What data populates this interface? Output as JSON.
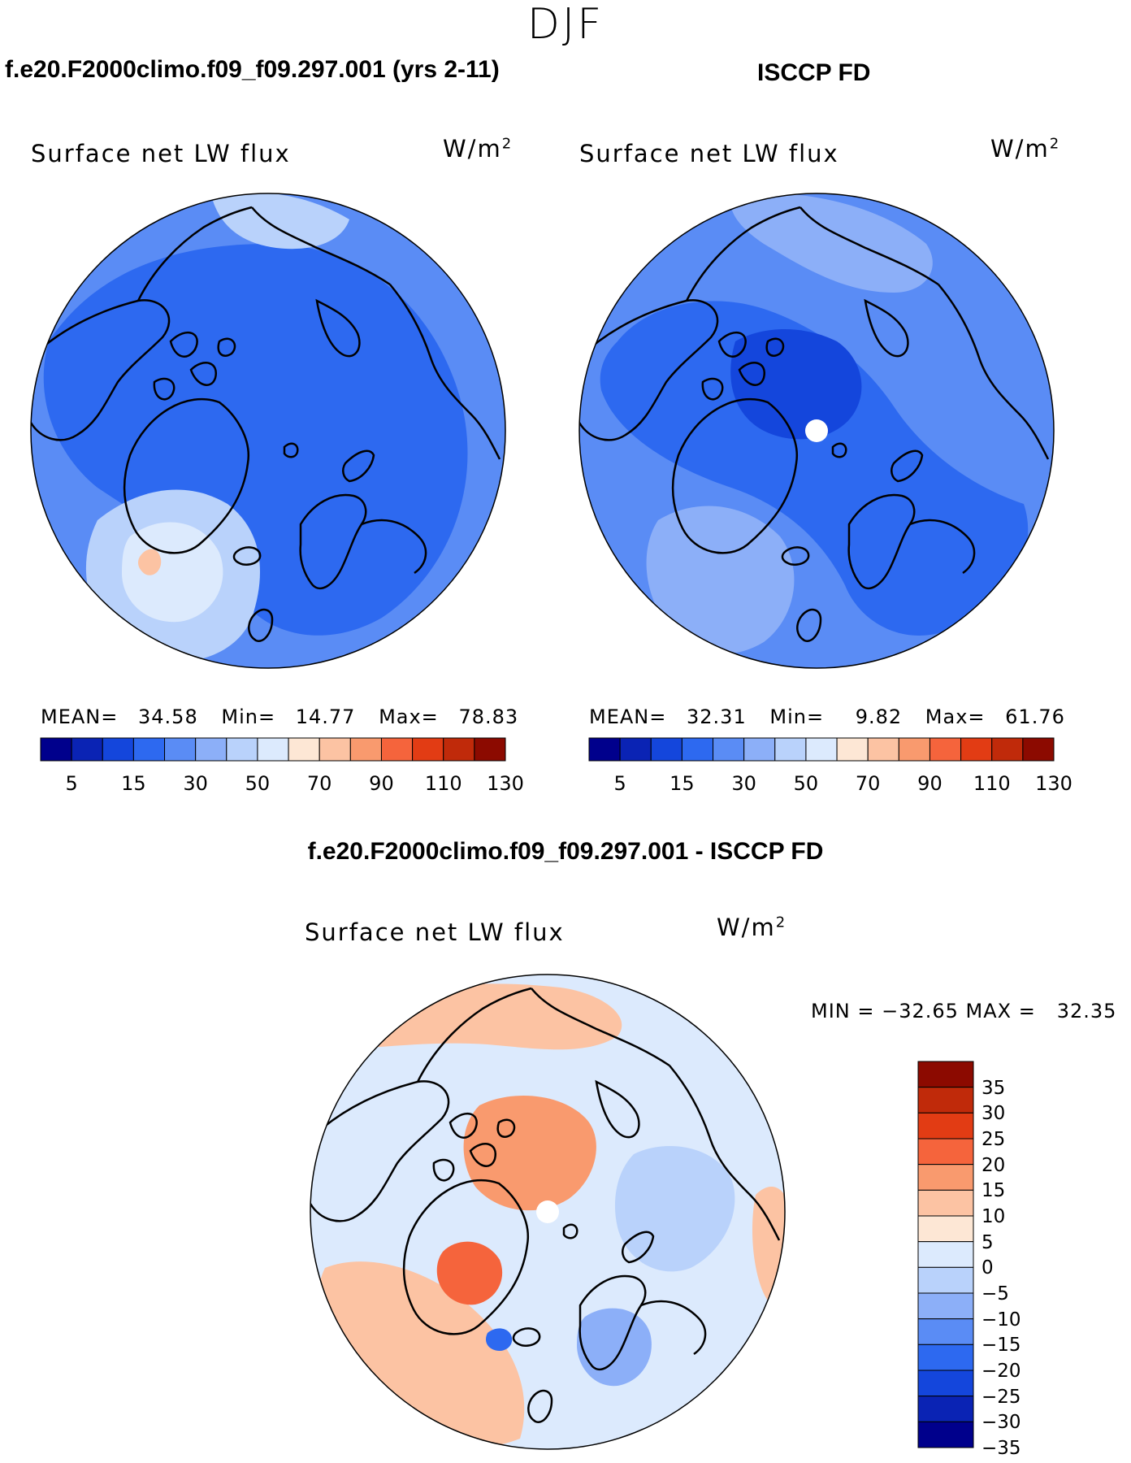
{
  "season": "DJF",
  "panels": [
    {
      "case_title": "f.e20.F2000climo.f09_f09.297.001 (yrs 2-11)",
      "var_title": "Surface net LW flux",
      "units_base": "W/m",
      "units_exp": "2",
      "mean_label": "MEAN=",
      "mean_value": "34.58",
      "min_label": "Min=",
      "min_value": "14.77",
      "max_label": "Max=",
      "max_value": "78.83"
    },
    {
      "case_title": "ISCCP FD",
      "var_title": "Surface net LW flux",
      "units_base": "W/m",
      "units_exp": "2",
      "mean_label": "MEAN=",
      "mean_value": "32.31",
      "min_label": "Min=",
      "min_value": "9.82",
      "max_label": "Max=",
      "max_value": "61.76"
    }
  ],
  "diff_panel": {
    "case_title": "f.e20.F2000climo.f09_f09.297.001 - ISCCP FD",
    "var_title": "Surface net LW flux",
    "units_base": "W/m",
    "units_exp": "2",
    "minmax_text": "MIN = −32.65 MAX =   32.35"
  },
  "colorbar_abs": {
    "colors": [
      "#00008c",
      "#0a23b4",
      "#1446dc",
      "#2d69f0",
      "#5a8cf5",
      "#8caff8",
      "#b9d2fb",
      "#dceafd",
      "#fde7d5",
      "#fcc3a3",
      "#f99a6e",
      "#f5643c",
      "#e23c14",
      "#c02a0a",
      "#8c0a00"
    ],
    "tick_labels": [
      "5",
      "15",
      "30",
      "50",
      "70",
      "90",
      "110",
      "130"
    ]
  },
  "colorbar_diff": {
    "colors": [
      "#8c0a00",
      "#c02a0a",
      "#e23c14",
      "#f5643c",
      "#f99a6e",
      "#fcc3a3",
      "#fde7d5",
      "#dceafd",
      "#b9d2fb",
      "#8caff8",
      "#5a8cf5",
      "#2d69f0",
      "#1446dc",
      "#0a23b4",
      "#00008c"
    ],
    "labels": [
      "35",
      "30",
      "25",
      "20",
      "15",
      "10",
      "5",
      "0",
      "−5",
      "−10",
      "−15",
      "−20",
      "−25",
      "−30",
      "−35"
    ]
  },
  "map_colors": {
    "model_base": "#5a8cf5",
    "model_dark": "#2d69f0",
    "model_light": "#b9d2fb",
    "model_pale": "#dceafd",
    "model_warm": "#fcc3a3",
    "obs_base": "#5a8cf5",
    "obs_dark": "#2d69f0",
    "obs_darker": "#1446dc",
    "obs_light": "#8caff8",
    "diff_base": "#dceafd",
    "diff_warm": "#fcc3a3",
    "diff_warmer": "#f99a6e",
    "diff_hot": "#f5643c",
    "diff_cool": "#b9d2fb",
    "diff_cold": "#8caff8",
    "diff_coldest": "#2d69f0",
    "coast": "#000000",
    "pole_hole": "#ffffff"
  }
}
